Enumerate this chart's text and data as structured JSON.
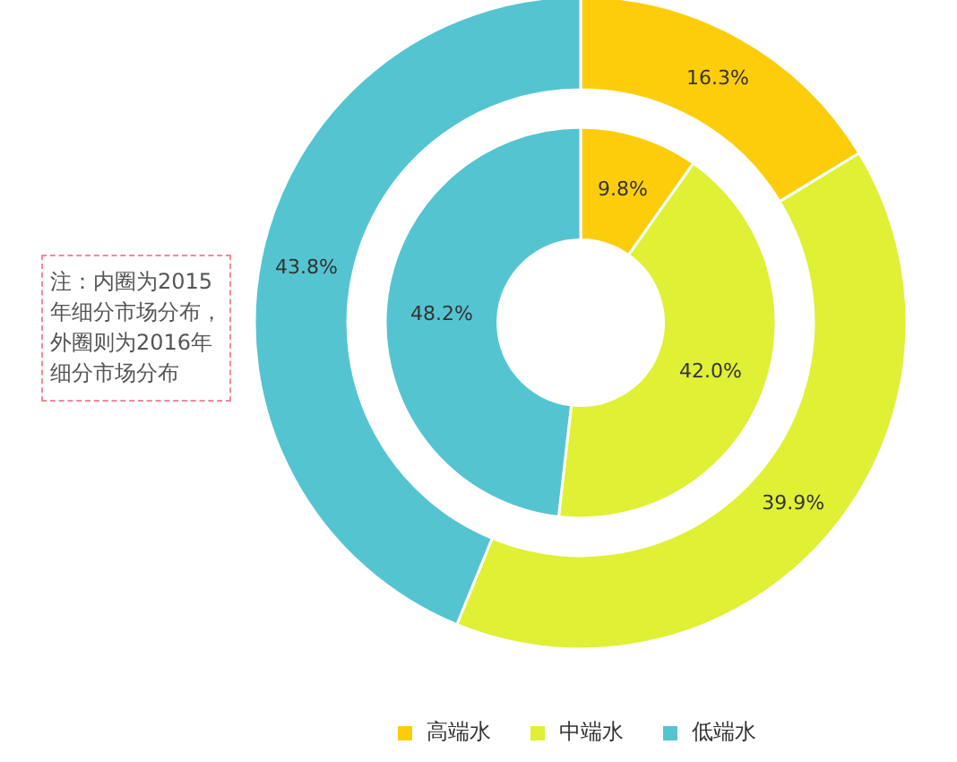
{
  "chart_data": {
    "type": "donut",
    "categories": [
      "高端水",
      "中端水",
      "低端水"
    ],
    "colors": [
      "#fdcd0c",
      "#dff035",
      "#55c4d1"
    ],
    "series": [
      {
        "values": [
          9.8,
          42.0,
          48.2
        ],
        "value_labels": [
          "9.8%",
          "42.0%",
          "48.2%"
        ]
      },
      {
        "values": [
          16.3,
          39.9,
          43.8
        ],
        "value_labels": [
          "16.3%",
          "39.9%",
          "43.8%"
        ]
      }
    ],
    "legend": "bottom",
    "annotations": [
      "注：内圈为2015年细分市场分布，外圈则为2016年细分市场分布"
    ]
  }
}
